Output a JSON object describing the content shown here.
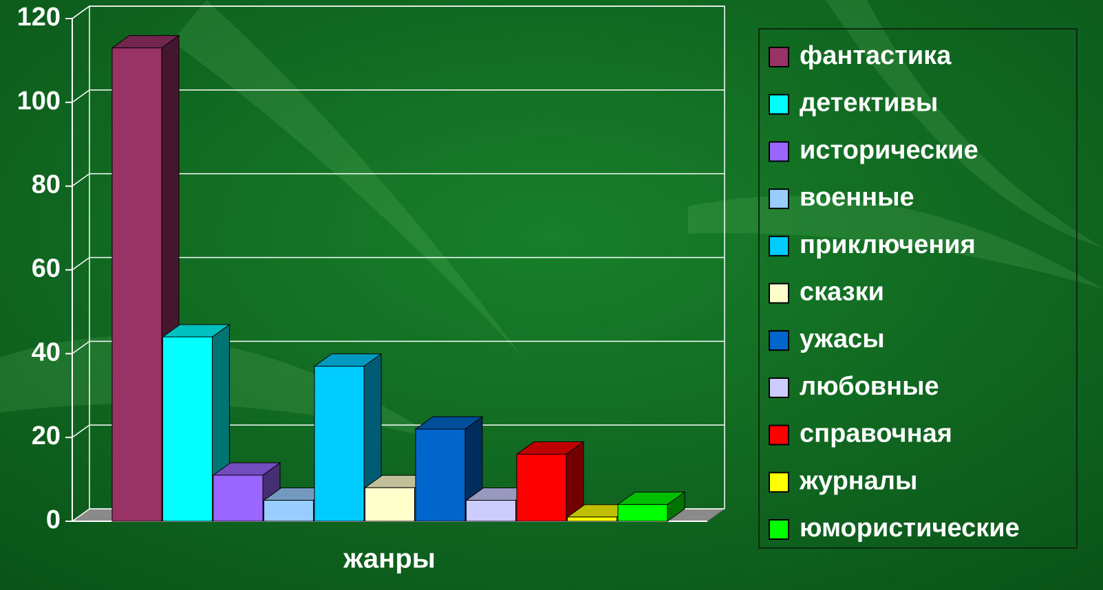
{
  "chart_data": {
    "type": "bar3d",
    "categories": [
      "жанры"
    ],
    "series": [
      {
        "name": "фантастика",
        "color": "#993366",
        "values": [
          113
        ]
      },
      {
        "name": "детективы",
        "color": "#00ffff",
        "values": [
          44
        ]
      },
      {
        "name": "исторические",
        "color": "#9966ff",
        "values": [
          11
        ]
      },
      {
        "name": "военные",
        "color": "#99ccff",
        "values": [
          5
        ]
      },
      {
        "name": "приключения",
        "color": "#00ccff",
        "values": [
          37
        ]
      },
      {
        "name": "сказки",
        "color": "#ffffcc",
        "values": [
          8
        ]
      },
      {
        "name": "ужасы",
        "color": "#0066cc",
        "values": [
          22
        ]
      },
      {
        "name": "любовные",
        "color": "#ccccff",
        "values": [
          5
        ]
      },
      {
        "name": "справочная",
        "color": "#ff0000",
        "values": [
          16
        ]
      },
      {
        "name": "журналы",
        "color": "#ffff00",
        "values": [
          1
        ]
      },
      {
        "name": "юмористические",
        "color": "#00ff00",
        "values": [
          4
        ]
      }
    ],
    "ylim": [
      0,
      120
    ],
    "yticks": [
      0,
      20,
      40,
      60,
      80,
      100,
      120
    ],
    "grid": true,
    "legend": "right"
  }
}
